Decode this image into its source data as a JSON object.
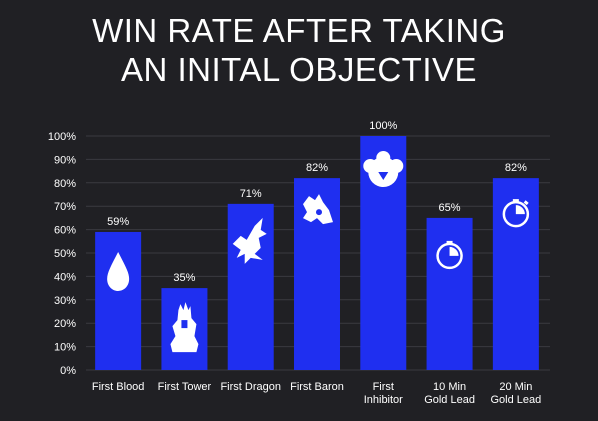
{
  "title_line1": "WIN RATE AFTER TAKING",
  "title_line2": "AN INITAL OBJECTIVE",
  "colors": {
    "background": "#202024",
    "bar": "#1f2ff0",
    "text": "#ffffff",
    "grid": "#3a3a40"
  },
  "chart_data": {
    "type": "bar",
    "title": "WIN RATE AFTER TAKING AN INITAL OBJECTIVE",
    "xlabel": "",
    "ylabel": "",
    "ylim": [
      0,
      100
    ],
    "y_ticks": [
      "0%",
      "10%",
      "20%",
      "30%",
      "40%",
      "50%",
      "60%",
      "70%",
      "80%",
      "90%",
      "100%"
    ],
    "categories": [
      [
        "First Blood"
      ],
      [
        "First Tower"
      ],
      [
        "First Dragon"
      ],
      [
        "First Baron"
      ],
      [
        "First",
        "Inhibitor"
      ],
      [
        "10 Min",
        "Gold Lead"
      ],
      [
        "20 Min",
        "Gold Lead"
      ]
    ],
    "values": [
      59,
      35,
      71,
      82,
      100,
      65,
      82
    ],
    "value_labels": [
      "59%",
      "35%",
      "71%",
      "82%",
      "100%",
      "65%",
      "82%"
    ],
    "icons": [
      "blood-drop-icon",
      "tower-icon",
      "dragon-icon",
      "baron-icon",
      "inhibitor-icon",
      "clock-icon",
      "stopwatch-icon"
    ],
    "grid": true,
    "legend": "none"
  }
}
